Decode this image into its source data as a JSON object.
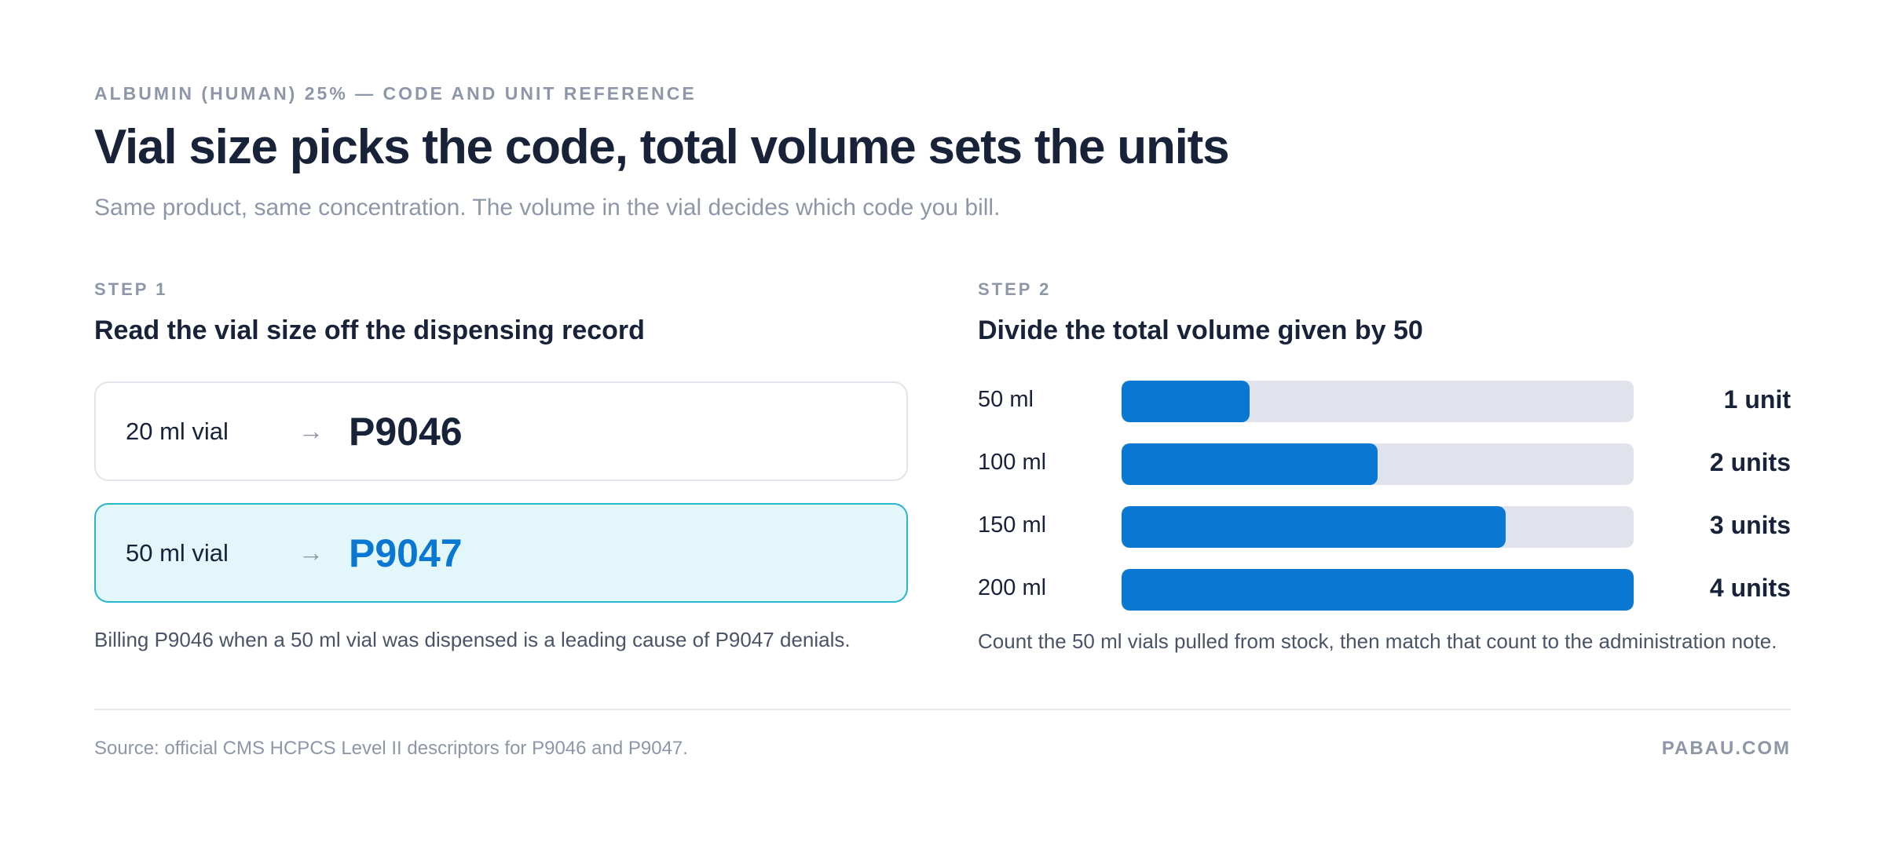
{
  "header": {
    "eyebrow": "ALBUMIN (HUMAN) 25% — CODE AND UNIT REFERENCE",
    "title": "Vial size picks the code, total volume sets the units",
    "subtitle": "Same product, same concentration. The volume in the vial decides which code you bill."
  },
  "step1": {
    "label": "STEP 1",
    "heading": "Read the vial size off the dispensing record",
    "cards": [
      {
        "size": "20 ml vial",
        "arrow": "→",
        "code": "P9046",
        "highlighted": false
      },
      {
        "size": "50 ml vial",
        "arrow": "→",
        "code": "P9047",
        "highlighted": true
      }
    ],
    "note": "Billing P9046 when a 50 ml vial was dispensed is a leading cause of P9047 denials."
  },
  "step2": {
    "label": "STEP 2",
    "heading": "Divide the total volume given by 50",
    "bar_max_units": 4,
    "bars": [
      {
        "volume": "50 ml",
        "units": 1,
        "units_label": "1 unit"
      },
      {
        "volume": "100 ml",
        "units": 2,
        "units_label": "2 units"
      },
      {
        "volume": "150 ml",
        "units": 3,
        "units_label": "3 units"
      },
      {
        "volume": "200 ml",
        "units": 4,
        "units_label": "4 units"
      }
    ],
    "note": "Count the 50 ml vials pulled from stock, then match that count to the administration note."
  },
  "footer": {
    "source": "Source: official CMS HCPCS Level II descriptors for P9046 and P9047.",
    "brand": "PABAU.COM"
  },
  "colors": {
    "accent": "#0a78d2",
    "highlight_border": "#28b6cf",
    "highlight_bg": "#e3f6f9",
    "track": "#e0e3ec",
    "text_dark": "#18233a",
    "text_muted": "#8d97a8"
  }
}
